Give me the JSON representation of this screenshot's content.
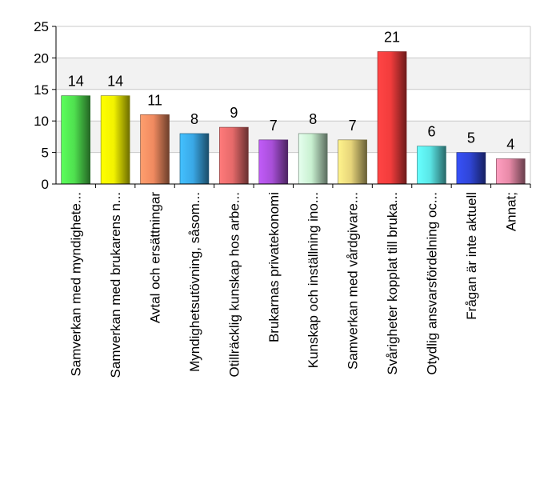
{
  "chart_data": {
    "type": "bar",
    "title": "",
    "xlabel": "",
    "ylabel": "",
    "ylim": [
      0,
      25
    ],
    "yticks": [
      0,
      5,
      10,
      15,
      20,
      25
    ],
    "grid": true,
    "legend": "none",
    "categories": [
      "Samverkan med myndighete...",
      "Samverkan med brukarens n...",
      "Avtal och ersättningar",
      "Myndighetsutövning, såsom...",
      "Otillräcklig kunskap hos arbe...",
      "Brukarnas privatekonomi",
      "Kunskap och inställning ino...",
      "Samverkan med vårdgivare...",
      "Svårigheter kopplat till bruka...",
      "Otydlig ansvarsfördelning oc...",
      "Frågan är inte aktuell",
      "Annat;"
    ],
    "values": [
      14,
      14,
      11,
      8,
      9,
      7,
      8,
      7,
      21,
      6,
      5,
      4
    ],
    "value_labels": [
      "14",
      "14",
      "11",
      "8",
      "9",
      "7",
      "8",
      "7",
      "21",
      "6",
      "5",
      "4"
    ],
    "colors": [
      "#4fe04f",
      "#f2f200",
      "#f08a60",
      "#3aa8e6",
      "#e66a6a",
      "#a84fd8",
      "#c8f0d0",
      "#e6d47a",
      "#f23c3c",
      "#5ae6e6",
      "#3046d8",
      "#e88aa8"
    ]
  }
}
